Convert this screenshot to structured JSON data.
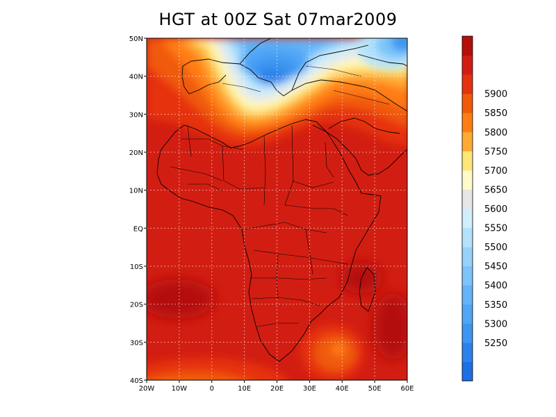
{
  "title": "HGT at 00Z Sat 07mar2009",
  "map": {
    "lon_range": [
      -20,
      60
    ],
    "lat_range": [
      -40,
      50
    ],
    "lat_ticks": [
      {
        "value": 50,
        "label": "50N"
      },
      {
        "value": 40,
        "label": "40N"
      },
      {
        "value": 30,
        "label": "30N"
      },
      {
        "value": 20,
        "label": "20N"
      },
      {
        "value": 10,
        "label": "10N"
      },
      {
        "value": 0,
        "label": "EQ"
      },
      {
        "value": -10,
        "label": "10S"
      },
      {
        "value": -20,
        "label": "20S"
      },
      {
        "value": -30,
        "label": "30S"
      },
      {
        "value": -40,
        "label": "40S"
      }
    ],
    "lon_ticks": [
      {
        "value": -20,
        "label": "20W"
      },
      {
        "value": -10,
        "label": "10W"
      },
      {
        "value": 0,
        "label": "0"
      },
      {
        "value": 10,
        "label": "10E"
      },
      {
        "value": 20,
        "label": "20E"
      },
      {
        "value": 30,
        "label": "30E"
      },
      {
        "value": 40,
        "label": "40E"
      },
      {
        "value": 50,
        "label": "50E"
      },
      {
        "value": 60,
        "label": "60E"
      }
    ],
    "grid": true,
    "background_color": "#d21e12"
  },
  "colorbar": {
    "levels": [
      {
        "label": "",
        "color": "#1e6ee6"
      },
      {
        "label": "5250",
        "color": "#2a82ea"
      },
      {
        "label": "5300",
        "color": "#3c96f0"
      },
      {
        "label": "5350",
        "color": "#50a5f5"
      },
      {
        "label": "5400",
        "color": "#64b4f8"
      },
      {
        "label": "5450",
        "color": "#7cc4fa"
      },
      {
        "label": "5500",
        "color": "#96d2fa"
      },
      {
        "label": "5550",
        "color": "#b4e2fa"
      },
      {
        "label": "5600",
        "color": "#d2eefa"
      },
      {
        "label": "5650",
        "color": "#e6e6e6"
      },
      {
        "label": "5700",
        "color": "#fffac8"
      },
      {
        "label": "5750",
        "color": "#ffe678"
      },
      {
        "label": "5800",
        "color": "#ffaa32"
      },
      {
        "label": "5850",
        "color": "#ff7d12"
      },
      {
        "label": "5900",
        "color": "#f05a0a"
      },
      {
        "label": "",
        "color": "#e6320f"
      },
      {
        "label": "",
        "color": "#d21e12"
      },
      {
        "label": "",
        "color": "#b40f0a"
      }
    ]
  }
}
